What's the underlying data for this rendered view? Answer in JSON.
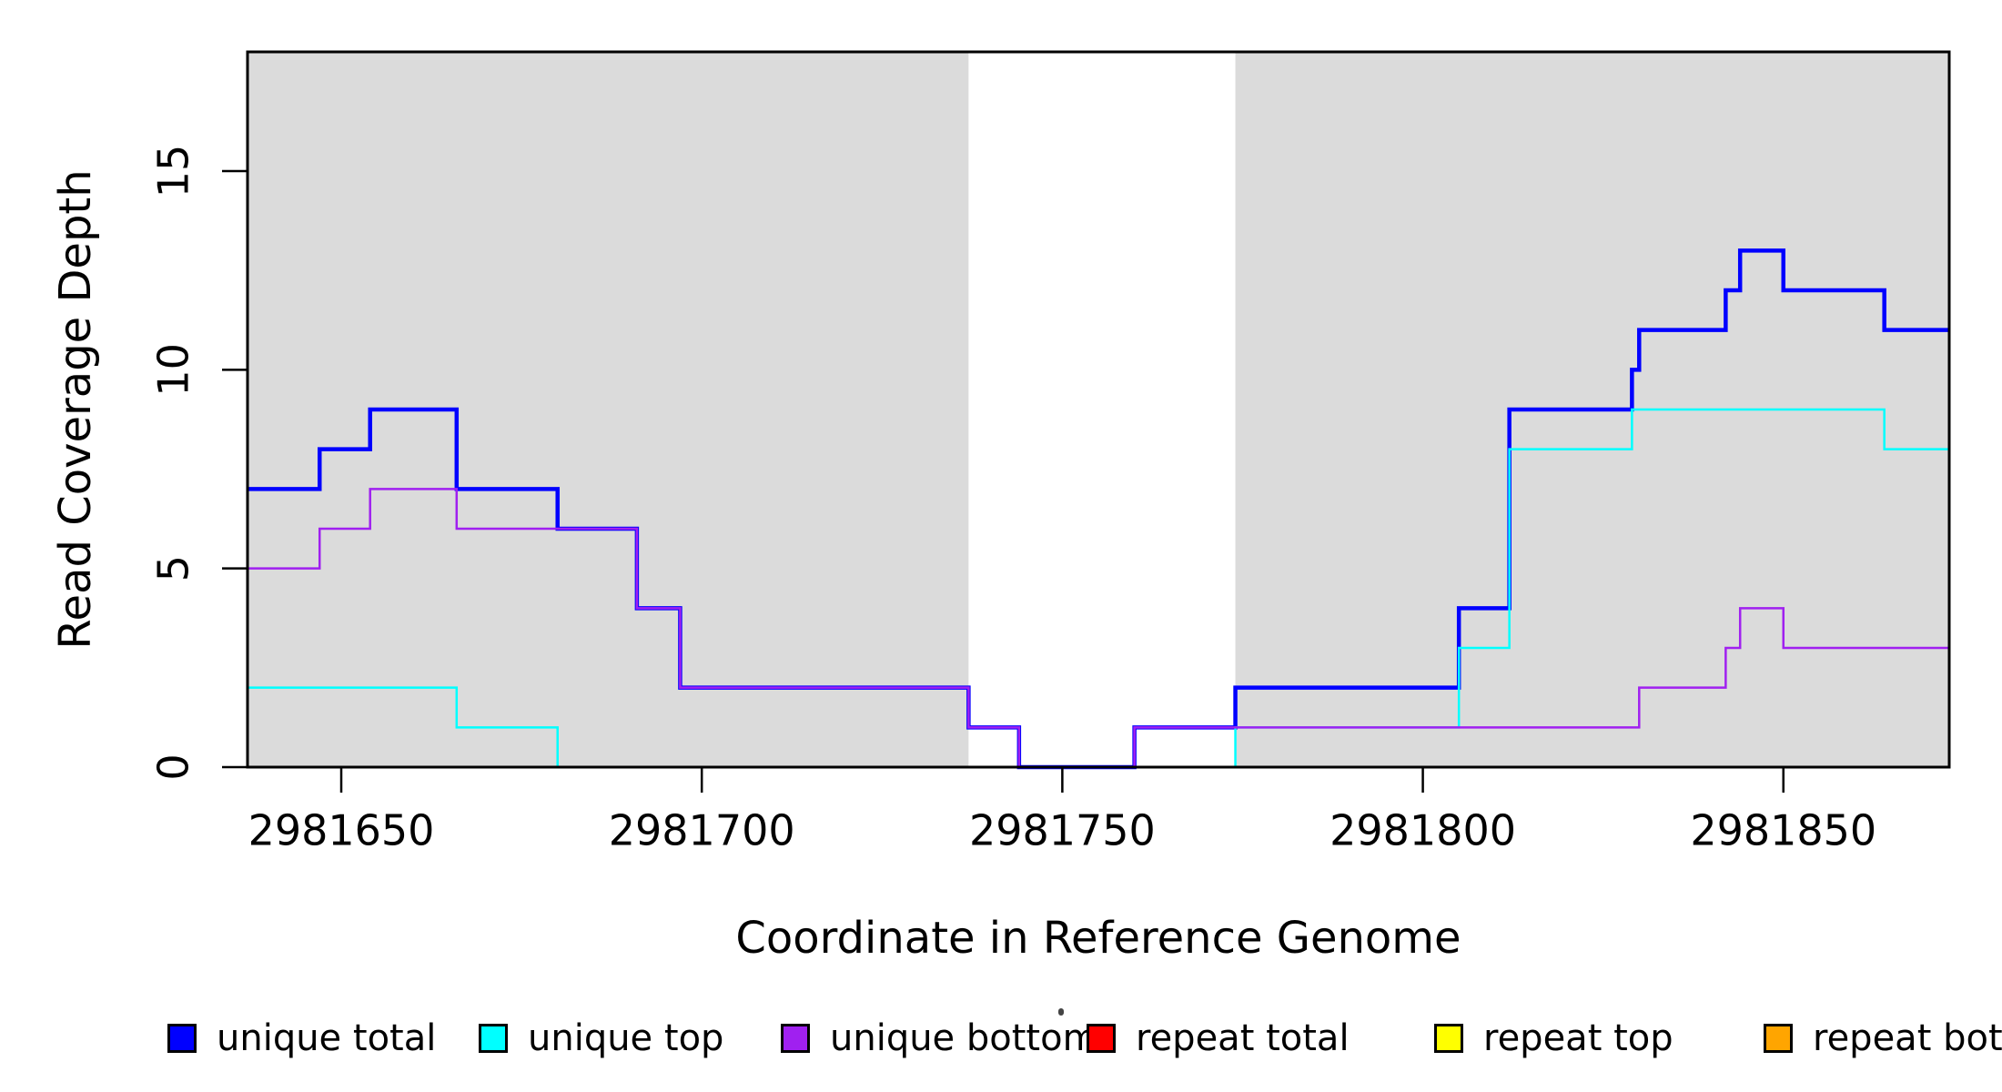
{
  "chart_data": {
    "type": "line",
    "subtype": "step-coverage-plot",
    "title": "",
    "xlabel": "Coordinate in Reference Genome",
    "ylabel": "Read Coverage Depth",
    "xlim": [
      2981637,
      2981873
    ],
    "ylim": [
      0,
      18
    ],
    "x_ticks": [
      2981650,
      2981700,
      2981750,
      2981800,
      2981850
    ],
    "y_ticks": [
      0,
      5,
      10,
      15
    ],
    "grid": false,
    "legend_position": "bottom",
    "plot_background": "#ffffff",
    "shaded_band_color": "#dbdbdb",
    "shaded_regions": [
      {
        "x0": 2981637,
        "x1": 2981737
      },
      {
        "x0": 2981774,
        "x1": 2981873
      }
    ],
    "series": [
      {
        "name": "repeat total",
        "color": "#ff0000",
        "line_width": 2.5,
        "x": [
          2981637
        ],
        "y": [
          0
        ]
      },
      {
        "name": "repeat top",
        "color": "#ffff00",
        "line_width": 2.5,
        "x": [
          2981637
        ],
        "y": [
          0
        ]
      },
      {
        "name": "repeat bottom",
        "color": "#ffa500",
        "line_width": 3,
        "x": [
          2981637
        ],
        "y": [
          0
        ]
      },
      {
        "name": "unique total",
        "color": "#0000ff",
        "line_width": 4.5,
        "x": [
          2981637,
          2981647,
          2981654,
          2981666,
          2981680,
          2981691,
          2981697,
          2981737,
          2981744,
          2981760,
          2981774,
          2981805,
          2981812,
          2981829,
          2981830,
          2981842,
          2981844,
          2981850,
          2981864
        ],
        "y": [
          7,
          8,
          9,
          7,
          6,
          4,
          2,
          1,
          0,
          1,
          2,
          4,
          9,
          10,
          11,
          12,
          13,
          12,
          11
        ]
      },
      {
        "name": "unique top",
        "color": "#00ffff",
        "line_width": 2.5,
        "x": [
          2981637,
          2981666,
          2981680,
          2981774,
          2981805,
          2981812,
          2981829,
          2981864
        ],
        "y": [
          2,
          1,
          0,
          1,
          3,
          8,
          9,
          8
        ]
      },
      {
        "name": "unique bottom",
        "color": "#a020f0",
        "line_width": 2.5,
        "x": [
          2981637,
          2981647,
          2981654,
          2981666,
          2981691,
          2981697,
          2981737,
          2981744,
          2981760,
          2981830,
          2981842,
          2981844,
          2981850
        ],
        "y": [
          5,
          6,
          7,
          6,
          4,
          2,
          1,
          0,
          1,
          2,
          3,
          4,
          3
        ]
      }
    ],
    "legend": [
      {
        "label": "unique total",
        "color": "#0000ff"
      },
      {
        "label": "unique top",
        "color": "#00ffff"
      },
      {
        "label": "unique bottom",
        "color": "#a020f0"
      },
      {
        "label": "repeat total",
        "color": "#ff0000"
      },
      {
        "label": "repeat top",
        "color": "#ffff00"
      },
      {
        "label": "repeat bottom",
        "color": "#ffa500"
      }
    ]
  }
}
